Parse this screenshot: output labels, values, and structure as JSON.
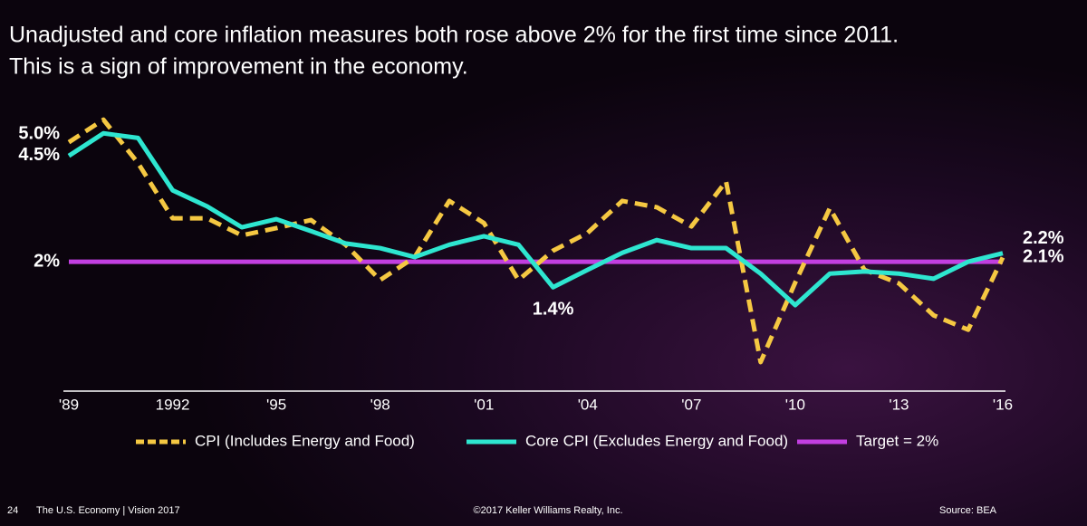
{
  "chart_data": {
    "type": "line",
    "title": [
      "Unadjusted and core inflation measures both rose above 2% for the first time since 2011.",
      "This is a sign of improvement in the economy."
    ],
    "categories": [
      "'89",
      null,
      null,
      "1992",
      null,
      null,
      "'95",
      null,
      null,
      "'98",
      null,
      null,
      "'01",
      null,
      null,
      "'04",
      null,
      null,
      "'07",
      null,
      null,
      "'10",
      null,
      null,
      "'13",
      null,
      null,
      "'16"
    ],
    "series": [
      {
        "name": "CPI (Includes Energy and Food)",
        "color": "#f5c842",
        "dashed": true,
        "values": [
          4.81,
          5.34,
          4.32,
          3.02,
          3.02,
          2.62,
          2.79,
          2.98,
          2.4,
          1.57,
          2.11,
          3.43,
          2.91,
          1.57,
          2.26,
          2.68,
          3.43,
          3.28,
          2.83,
          3.89,
          -0.36,
          1.51,
          3.26,
          1.81,
          1.49,
          0.74,
          0.4,
          2.1
        ],
        "value_labels": [
          null,
          null,
          null,
          null,
          null,
          null,
          null,
          null,
          null,
          null,
          null,
          null,
          null,
          null,
          null,
          null,
          null,
          null,
          null,
          null,
          null,
          null,
          null,
          null,
          null,
          null,
          null,
          "2.1%"
        ]
      },
      {
        "name": "Core CPI (Excludes Energy and Food)",
        "color": "#2ee6d0",
        "dashed": false,
        "values": [
          4.49,
          5.02,
          4.91,
          3.68,
          3.3,
          2.81,
          3.0,
          2.72,
          2.43,
          2.32,
          2.11,
          2.4,
          2.6,
          2.4,
          1.4,
          1.81,
          2.21,
          2.51,
          2.32,
          2.32,
          1.72,
          0.98,
          1.72,
          1.77,
          1.72,
          1.6,
          2.0,
          2.2
        ],
        "value_labels": [
          null,
          null,
          null,
          null,
          null,
          null,
          null,
          null,
          null,
          null,
          null,
          null,
          null,
          null,
          "1.4%",
          null,
          null,
          null,
          null,
          null,
          null,
          null,
          null,
          null,
          null,
          null,
          null,
          "2.2%"
        ]
      }
    ],
    "target": {
      "name": "Target = 2%",
      "value": 2,
      "color": "#c23fe0"
    },
    "ylim": [
      -1,
      5.6
    ],
    "yticks": [
      {
        "value": 5,
        "label": "5.0%"
      },
      {
        "value": 4.5,
        "label": "4.5%"
      },
      {
        "value": 2,
        "label": "2%"
      }
    ],
    "footer": {
      "page": "24",
      "publication": "The U.S. Economy | Vision 2017",
      "copyright": "©2017 Keller Williams Realty, Inc.",
      "source": "Source: BEA"
    }
  }
}
